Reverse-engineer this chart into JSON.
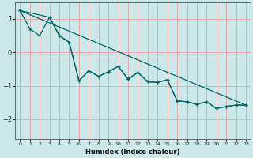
{
  "bg_color": "#cce8e8",
  "grid_color": "#e8a0a0",
  "line_color": "#006666",
  "xlabel": "Humidex (Indice chaleur)",
  "xlim": [
    -0.5,
    23.5
  ],
  "ylim": [
    -2.6,
    1.5
  ],
  "yticks": [
    -2,
    -1,
    0,
    1
  ],
  "xticks": [
    0,
    1,
    2,
    3,
    4,
    5,
    6,
    7,
    8,
    9,
    10,
    11,
    12,
    13,
    14,
    15,
    16,
    17,
    18,
    19,
    20,
    21,
    22,
    23
  ],
  "line1_x": [
    0,
    1,
    2,
    3,
    4,
    5,
    6,
    7,
    8,
    9,
    10,
    11,
    12,
    13,
    14,
    15,
    16,
    17,
    18,
    19,
    20,
    21,
    22,
    23
  ],
  "line1_y": [
    1.25,
    0.7,
    0.5,
    1.05,
    0.5,
    0.3,
    -0.85,
    -0.55,
    -0.72,
    -0.58,
    -0.42,
    -0.8,
    -0.6,
    -0.88,
    -0.9,
    -0.82,
    -1.45,
    -1.48,
    -1.55,
    -1.48,
    -1.68,
    -1.62,
    -1.58,
    -1.58
  ],
  "line2_x": [
    0,
    3,
    4,
    5,
    6,
    7,
    8,
    9,
    10,
    11,
    12,
    13,
    14,
    15,
    16,
    17,
    18,
    19,
    20,
    21,
    22,
    23
  ],
  "line2_y": [
    1.25,
    1.05,
    0.5,
    0.3,
    -0.85,
    -0.55,
    -0.72,
    -0.58,
    -0.42,
    -0.8,
    -0.6,
    -0.88,
    -0.9,
    -0.82,
    -1.45,
    -1.48,
    -1.55,
    -1.48,
    -1.68,
    -1.62,
    -1.58,
    -1.58
  ],
  "line3_x": [
    0,
    23
  ],
  "line3_y": [
    1.25,
    -1.58
  ]
}
